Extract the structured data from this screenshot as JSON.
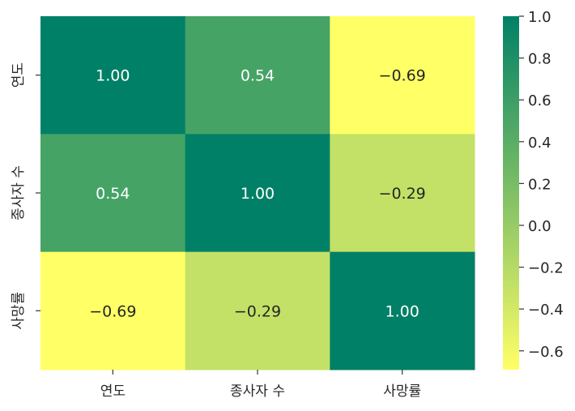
{
  "chart_data": {
    "type": "heatmap",
    "row_labels": [
      "연도",
      "종사자 수",
      "사망률"
    ],
    "col_labels": [
      "연도",
      "종사자 수",
      "사망률"
    ],
    "values": [
      [
        1.0,
        0.54,
        -0.69
      ],
      [
        0.54,
        1.0,
        -0.29
      ],
      [
        -0.69,
        -0.29,
        1.0
      ]
    ],
    "annotations": [
      [
        "1.00",
        "0.54",
        "−0.69"
      ],
      [
        "0.54",
        "1.00",
        "−0.29"
      ],
      [
        "−0.69",
        "−0.29",
        "1.00"
      ]
    ],
    "colormap": "summer_r",
    "colors": {
      "low": "#ffff66",
      "high": "#008066"
    },
    "colorbar": {
      "vmin": -0.69,
      "vmax": 1.0,
      "ticks": [
        1.0,
        0.8,
        0.6,
        0.4,
        0.2,
        0.0,
        -0.2,
        -0.4,
        -0.6
      ],
      "tick_labels": [
        "1.0",
        "0.8",
        "0.6",
        "0.4",
        "0.2",
        "0.0",
        "−0.2",
        "−0.4",
        "−0.6"
      ]
    }
  }
}
